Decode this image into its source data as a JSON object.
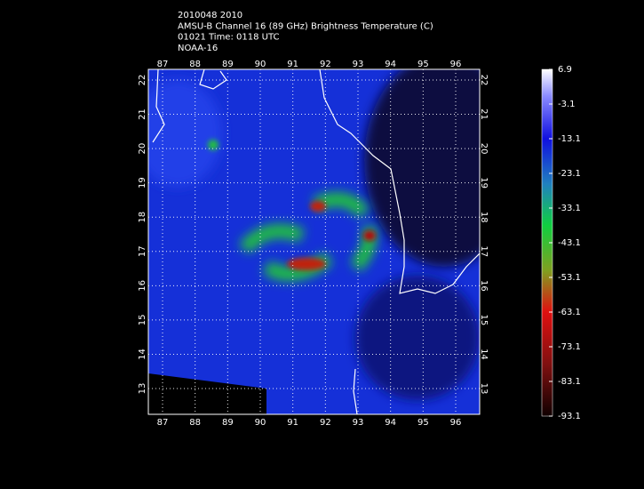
{
  "header": {
    "lines": [
      "2010048 2010",
      "AMSU-B Channel 16 (89 GHz) Brightness Temperature (C)",
      "01021 Time: 0118 UTC",
      "NOAA-16"
    ]
  },
  "map": {
    "lon_ticks": [
      87,
      88,
      89,
      90,
      91,
      92,
      93,
      94,
      95,
      96
    ],
    "lat_ticks": [
      13,
      14,
      15,
      16,
      17,
      18,
      19,
      20,
      21,
      22
    ]
  },
  "colorbar": {
    "ticks": [
      6.9,
      -3.1,
      -13.1,
      -23.1,
      -33.1,
      -43.1,
      -53.1,
      -63.1,
      -73.1,
      -83.1,
      -93.1
    ]
  }
}
